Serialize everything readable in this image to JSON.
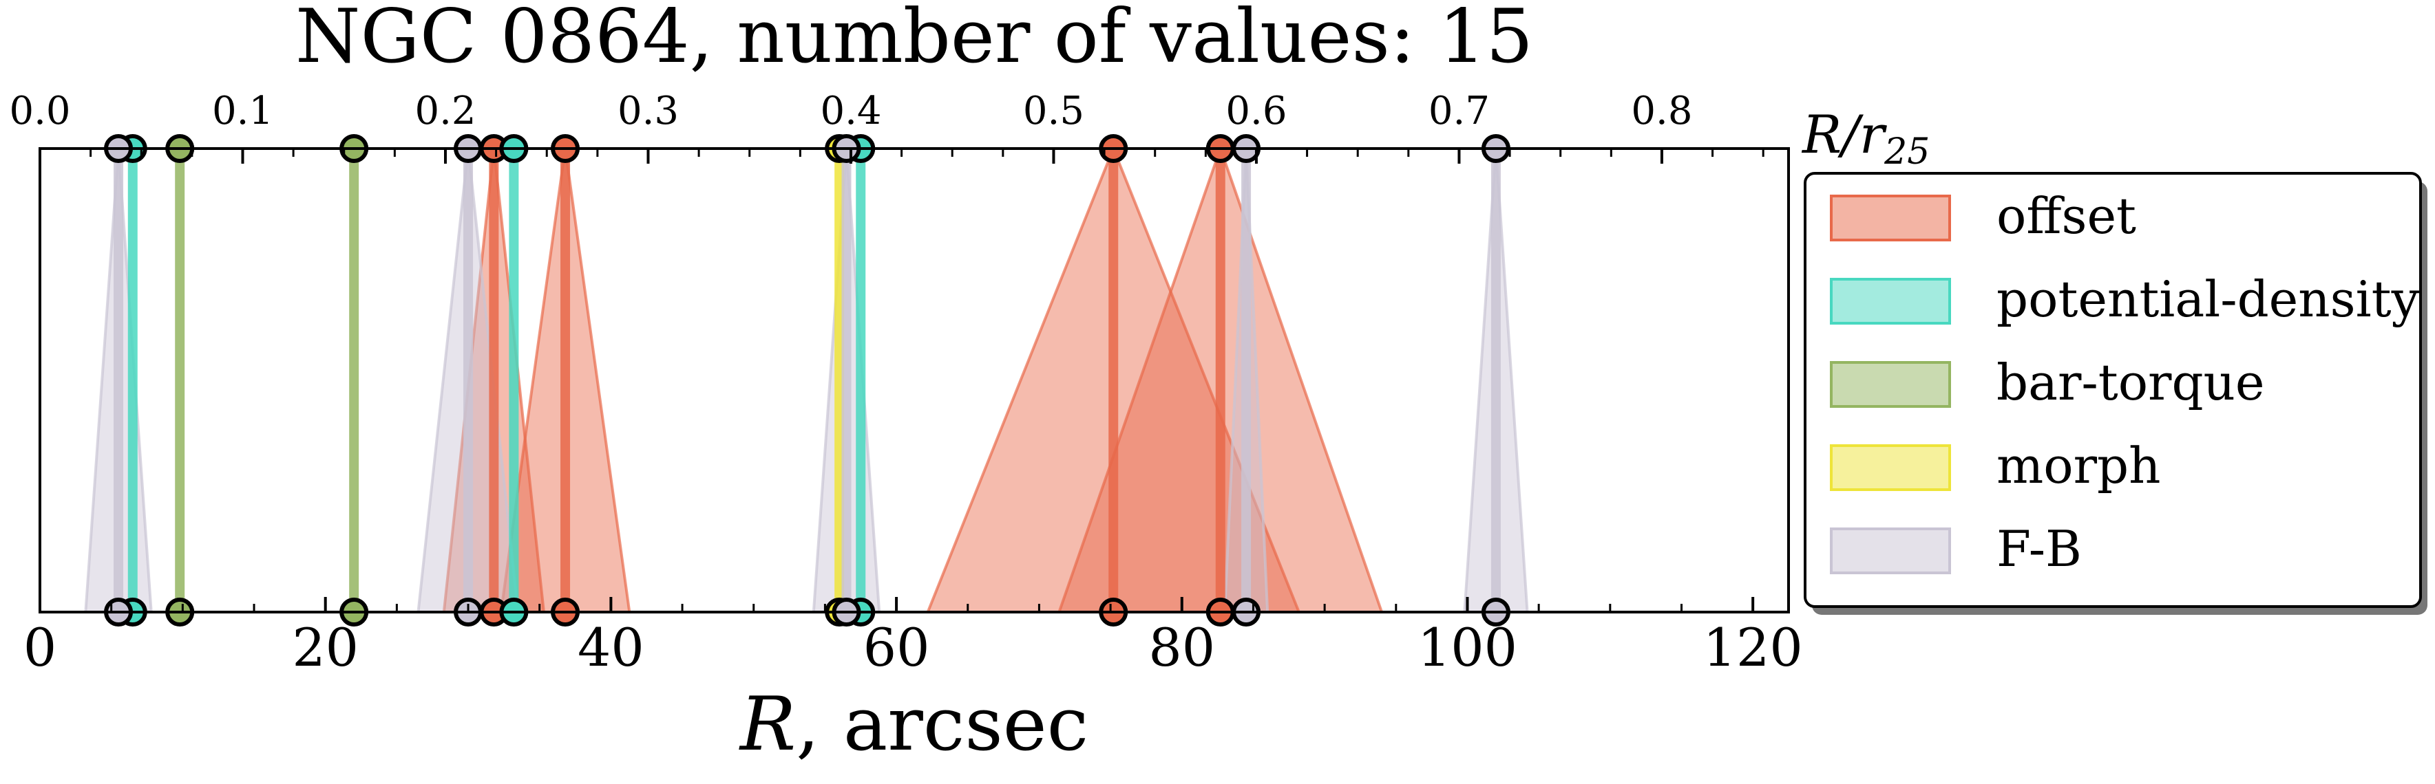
{
  "chart_data": {
    "type": "scatter",
    "title": "NGC 0864, number of values: 15",
    "xlabel_main": "R",
    "xlabel_suffix": ", arcsec",
    "top_axis_label_main": "R/r",
    "top_axis_label_sub": "25",
    "xlim": [
      0,
      122.5
    ],
    "xticks": [
      0,
      20,
      40,
      60,
      80,
      100,
      120
    ],
    "top_xlim": [
      0,
      0.8625
    ],
    "top_xticks": [
      "0.0",
      "0.1",
      "0.2",
      "0.3",
      "0.4",
      "0.5",
      "0.6",
      "0.7",
      "0.8"
    ],
    "legend_position": "right",
    "series": [
      {
        "name": "offset",
        "color": "#e8694a",
        "points": [
          {
            "x": 31.8,
            "err": 3.5
          },
          {
            "x": 36.8,
            "err": 4.5
          },
          {
            "x": 75.2,
            "err": 13.0
          },
          {
            "x": 82.7,
            "err": 11.3
          }
        ]
      },
      {
        "name": "potential-density",
        "color": "#48d8c0",
        "points": [
          {
            "x": 6.5,
            "err": 0
          },
          {
            "x": 33.2,
            "err": 0
          },
          {
            "x": 57.5,
            "err": 0
          }
        ]
      },
      {
        "name": "bar-torque",
        "color": "#94b561",
        "points": [
          {
            "x": 9.8,
            "err": 0
          },
          {
            "x": 22.0,
            "err": 0
          }
        ]
      },
      {
        "name": "morph",
        "color": "#eee43a",
        "points": [
          {
            "x": 56.0,
            "err": 0
          }
        ]
      },
      {
        "name": "F-B",
        "color": "#c9c4d4",
        "points": [
          {
            "x": 5.5,
            "err": 2.3
          },
          {
            "x": 30.0,
            "err": 3.5
          },
          {
            "x": 56.5,
            "err": 2.3
          },
          {
            "x": 84.5,
            "err": 1.5
          },
          {
            "x": 102.0,
            "err": 2.2
          }
        ]
      }
    ]
  }
}
